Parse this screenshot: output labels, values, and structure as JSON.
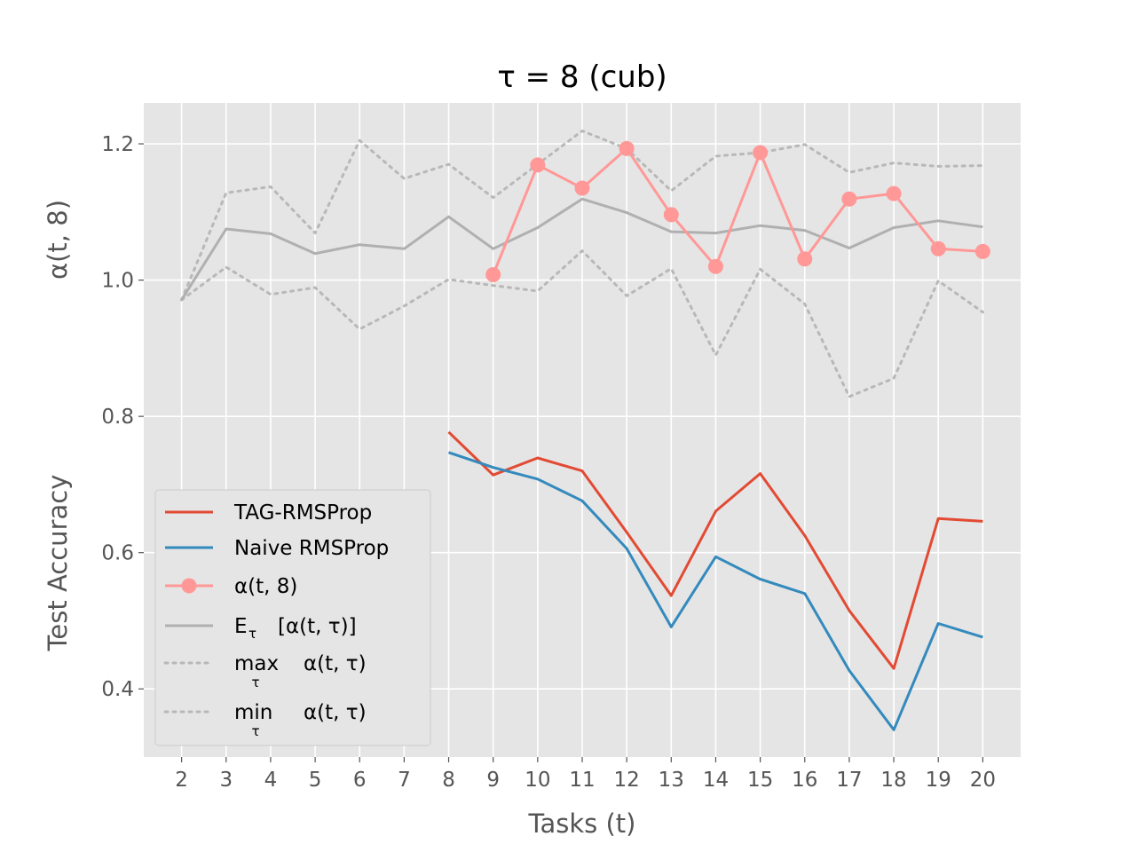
{
  "chart_data": {
    "type": "line",
    "title": "τ = 8 (cub)",
    "xlabel": "Tasks (t)",
    "ylabel_top": "α(t, 8)",
    "ylabel_bottom": "Test Accuracy",
    "x_ticks": [
      2,
      3,
      4,
      5,
      6,
      7,
      8,
      9,
      10,
      11,
      12,
      13,
      14,
      15,
      16,
      17,
      18,
      19,
      20
    ],
    "y_ticks": [
      "0.4",
      "0.6",
      "0.8",
      "1.0",
      "1.2"
    ],
    "xlim": [
      1.15,
      20.85
    ],
    "ylim": [
      0.3,
      1.26
    ],
    "grid": true,
    "legend_position": "lower-left",
    "series": [
      {
        "name": "TAG-RMSProp",
        "color": "#E24A33",
        "style": "solid",
        "x": [
          8,
          9,
          10,
          11,
          12,
          13,
          14,
          15,
          16,
          17,
          18,
          19,
          20
        ],
        "values": [
          0.777,
          0.714,
          0.739,
          0.72,
          0.63,
          0.537,
          0.661,
          0.716,
          0.625,
          0.515,
          0.43,
          0.65,
          0.646
        ]
      },
      {
        "name": "Naive RMSProp",
        "color": "#348ABD",
        "style": "solid",
        "x": [
          8,
          9,
          10,
          11,
          12,
          13,
          14,
          15,
          16,
          17,
          18,
          19,
          20
        ],
        "values": [
          0.747,
          0.725,
          0.708,
          0.676,
          0.606,
          0.491,
          0.594,
          0.561,
          0.54,
          0.427,
          0.34,
          0.496,
          0.476
        ]
      },
      {
        "name": "α(t, 8)",
        "color": "#FF9896",
        "style": "marker",
        "x": [
          9,
          10,
          11,
          12,
          13,
          14,
          15,
          16,
          17,
          18,
          19,
          20
        ],
        "values": [
          1.008,
          1.169,
          1.135,
          1.193,
          1.096,
          1.02,
          1.187,
          1.031,
          1.119,
          1.127,
          1.046,
          1.042
        ]
      },
      {
        "name": "E_τ [α(t, τ)]",
        "legend_main": "E",
        "legend_sub": "τ",
        "legend_rest": "[α(t, τ)]",
        "color": "#b0b0b0",
        "style": "solid",
        "x": [
          2,
          3,
          4,
          5,
          6,
          7,
          8,
          9,
          10,
          11,
          12,
          13,
          14,
          15,
          16,
          17,
          18,
          19,
          20
        ],
        "values": [
          0.971,
          1.075,
          1.068,
          1.039,
          1.052,
          1.046,
          1.093,
          1.046,
          1.077,
          1.119,
          1.099,
          1.071,
          1.069,
          1.08,
          1.073,
          1.047,
          1.077,
          1.087,
          1.078
        ]
      },
      {
        "name": "max_τ α(t, τ)",
        "legend_main": "max",
        "legend_sub": "τ",
        "legend_rest": "α(t, τ)",
        "color": "#b8b8b8",
        "style": "dotted",
        "x": [
          2,
          3,
          4,
          5,
          6,
          7,
          8,
          9,
          10,
          11,
          12,
          13,
          14,
          15,
          16,
          17,
          18,
          19,
          20
        ],
        "values": [
          0.971,
          1.128,
          1.137,
          1.069,
          1.205,
          1.149,
          1.17,
          1.121,
          1.17,
          1.219,
          1.193,
          1.131,
          1.182,
          1.187,
          1.199,
          1.158,
          1.172,
          1.167,
          1.168
        ]
      },
      {
        "name": "min_τ α(t, τ)",
        "legend_main": "min",
        "legend_sub": "τ",
        "legend_rest": "α(t, τ)",
        "color": "#b8b8b8",
        "style": "dotted",
        "x": [
          2,
          3,
          4,
          5,
          6,
          7,
          8,
          9,
          10,
          11,
          12,
          13,
          14,
          15,
          16,
          17,
          18,
          19,
          20
        ],
        "values": [
          0.971,
          1.019,
          0.979,
          0.989,
          0.928,
          0.962,
          1.001,
          0.992,
          0.984,
          1.043,
          0.977,
          1.017,
          0.89,
          1.016,
          0.965,
          0.829,
          0.856,
          0.999,
          0.953
        ]
      }
    ]
  }
}
